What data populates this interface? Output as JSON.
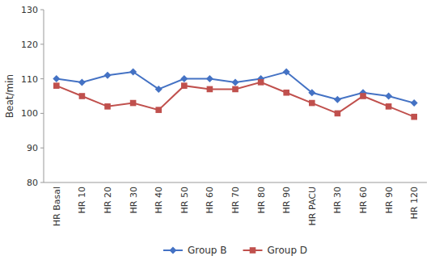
{
  "chart_data": {
    "type": "line",
    "categories": [
      "HR Basal",
      "HR 10",
      "HR 20",
      "HR 30",
      "HR 40",
      "HR 50",
      "HR 60",
      "HR 70",
      "HR 80",
      "HR 90",
      "HR PACU",
      "HR 30",
      "HR 60",
      "HR 90",
      "HR 120"
    ],
    "series": [
      {
        "name": "Group B",
        "color": "#4472C4",
        "marker": "diamond",
        "values": [
          110,
          109,
          111,
          112,
          107,
          110,
          110,
          109,
          110,
          112,
          106,
          104,
          106,
          105,
          103
        ]
      },
      {
        "name": "Group D",
        "color": "#C0504D",
        "marker": "square",
        "values": [
          108,
          105,
          102,
          103,
          101,
          108,
          107,
          107,
          109,
          106,
          103,
          100,
          105,
          102,
          99
        ]
      }
    ],
    "ylabel": "Beat/min",
    "ylim": [
      80,
      130
    ],
    "yticks": [
      80,
      90,
      100,
      110,
      120,
      130
    ],
    "grid": false,
    "legend": "bottom"
  }
}
